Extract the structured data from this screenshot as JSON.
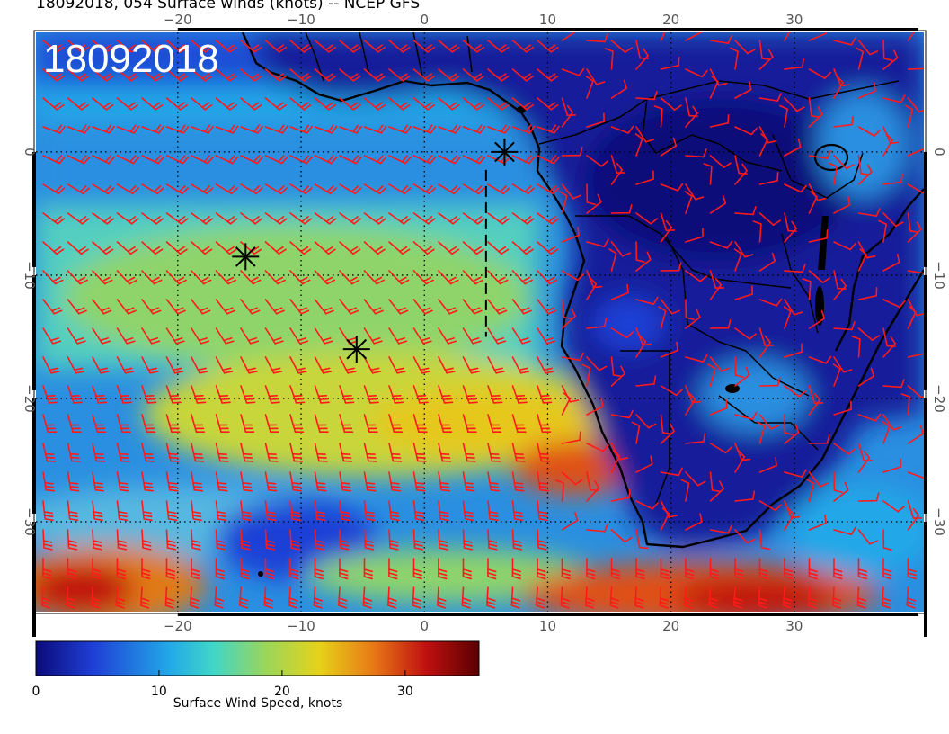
{
  "title": "18092018, 054 Surface winds (knots) -- NCEP GFS",
  "date_stamp": "18092018",
  "map": {
    "lon_ticks": [
      "−20",
      "−10",
      "0",
      "10",
      "20",
      "30"
    ],
    "lat_ticks": [
      "0",
      "−10",
      "−20",
      "−30"
    ],
    "lon_values": [
      -20,
      -10,
      0,
      10,
      20,
      30
    ],
    "lat_values": [
      0,
      -10,
      -20,
      -30
    ],
    "graticule": "dotted",
    "barb_color": "#ff1a1a",
    "coastline_color": "#000000",
    "storm_markers": [
      {
        "lon": 6.5,
        "lat": 0
      },
      {
        "lon": -14.5,
        "lat": -8.5
      },
      {
        "lon": -5.5,
        "lat": -16
      }
    ],
    "dashed_line": {
      "lon": 5,
      "lat_from": 0,
      "lat_to": -15
    }
  },
  "colorbar": {
    "label": "Surface Wind Speed, knots",
    "ticks": [
      "0",
      "10",
      "20",
      "30"
    ],
    "tick_values": [
      0,
      10,
      20,
      30
    ],
    "max": 36,
    "colors": [
      "#0b0b7a",
      "#1f3fd6",
      "#22a8e8",
      "#3fd6c8",
      "#9bd65a",
      "#e6d21a",
      "#e87a16",
      "#c01010",
      "#5a0000"
    ]
  }
}
